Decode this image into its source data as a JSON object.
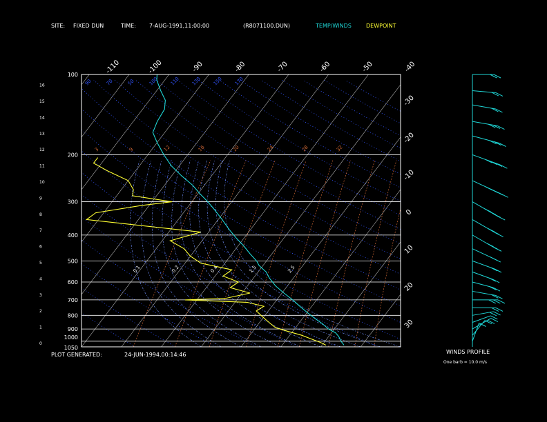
{
  "header": {
    "site_label": "SITE:",
    "site_value": "FIXED DUN",
    "time_label": "TIME:",
    "time_value": "7-AUG-1991,11:00:00",
    "file_id": "(R8071100.DUN)",
    "legend_temp": "TEMP/WINDS",
    "legend_dewpoint": "DEWPOINT"
  },
  "footer": {
    "generated_label": "PLOT GENERATED:",
    "generated_value": "24-JUN-1994,00:14:46"
  },
  "winds_panel": {
    "title": "WINDS PROFILE",
    "note": "One barb = 10.0 m/s"
  },
  "colors": {
    "background": "#000000",
    "frame": "#ffffff",
    "temperature": "#1fd6d6",
    "dewpoint": "#ffff33",
    "isotherm": "#b0b0b0",
    "dry_adiabat": "#3355ff",
    "moist_adiabat": "#7090ff",
    "mixing_ratio": "#cc6633"
  },
  "chart_data": {
    "type": "line",
    "chart_kind": "skew-T log-p diagram",
    "pressure_ticks_hpa": [
      "100",
      "200",
      "300",
      "400",
      "500",
      "600",
      "700",
      "800",
      "900",
      "1000",
      "1050"
    ],
    "height_ticks_km": [
      "0",
      "1",
      "2",
      "3",
      "4",
      "5",
      "6",
      "7",
      "8",
      "9",
      "10",
      "11",
      "12",
      "13",
      "14",
      "15",
      "16"
    ],
    "top_temp_ticks": [
      "-110",
      "-100",
      "-90",
      "-80",
      "-70",
      "-60",
      "-50",
      "-40"
    ],
    "right_temp_ticks": [
      "-30",
      "-20",
      "-10",
      "0",
      "10",
      "20",
      "30"
    ],
    "theta_labels": [
      "2.5",
      "1.5",
      "0.4",
      "0.2",
      "0.1"
    ],
    "mixing_ratio_labels": [
      "3",
      "9",
      "12",
      "16",
      "20",
      "24",
      "28",
      "32"
    ],
    "dry_adiabat_labels": [
      "90",
      "70",
      "50",
      "100",
      "110",
      "130",
      "150",
      "170"
    ],
    "ylim_hpa": [
      1050,
      100
    ],
    "series": [
      {
        "name": "TEMP/WINDS",
        "points": [
          {
            "p": 1035,
            "t": 25.5
          },
          {
            "p": 1000,
            "t": 24
          },
          {
            "p": 960,
            "t": 22.5
          },
          {
            "p": 930,
            "t": 21
          },
          {
            "p": 900,
            "t": 18.5
          },
          {
            "p": 860,
            "t": 16
          },
          {
            "p": 820,
            "t": 13
          },
          {
            "p": 780,
            "t": 10
          },
          {
            "p": 740,
            "t": 7
          },
          {
            "p": 700,
            "t": 4
          },
          {
            "p": 660,
            "t": 0.5
          },
          {
            "p": 620,
            "t": -3
          },
          {
            "p": 580,
            "t": -6
          },
          {
            "p": 550,
            "t": -8
          },
          {
            "p": 520,
            "t": -11
          },
          {
            "p": 500,
            "t": -12.5
          },
          {
            "p": 470,
            "t": -15.5
          },
          {
            "p": 440,
            "t": -18.5
          },
          {
            "p": 410,
            "t": -22
          },
          {
            "p": 380,
            "t": -25.5
          },
          {
            "p": 350,
            "t": -29
          },
          {
            "p": 320,
            "t": -33
          },
          {
            "p": 300,
            "t": -36
          },
          {
            "p": 280,
            "t": -39.5
          },
          {
            "p": 260,
            "t": -43
          },
          {
            "p": 240,
            "t": -47.5
          },
          {
            "p": 220,
            "t": -52
          },
          {
            "p": 200,
            "t": -56
          },
          {
            "p": 180,
            "t": -60
          },
          {
            "p": 165,
            "t": -63
          },
          {
            "p": 150,
            "t": -64
          },
          {
            "p": 135,
            "t": -64.5
          },
          {
            "p": 125,
            "t": -66
          },
          {
            "p": 115,
            "t": -69
          },
          {
            "p": 105,
            "t": -72
          },
          {
            "p": 100,
            "t": -73
          }
        ]
      },
      {
        "name": "DEWPOINT",
        "points": [
          {
            "p": 1035,
            "t": 21
          },
          {
            "p": 1010,
            "t": 19
          },
          {
            "p": 980,
            "t": 16
          },
          {
            "p": 950,
            "t": 13
          },
          {
            "p": 920,
            "t": 9
          },
          {
            "p": 890,
            "t": 5
          },
          {
            "p": 860,
            "t": 3
          },
          {
            "p": 830,
            "t": 1
          },
          {
            "p": 800,
            "t": -1
          },
          {
            "p": 770,
            "t": -3
          },
          {
            "p": 740,
            "t": -2
          },
          {
            "p": 715,
            "t": -7
          },
          {
            "p": 700,
            "t": -23
          },
          {
            "p": 690,
            "t": -13
          },
          {
            "p": 660,
            "t": -8
          },
          {
            "p": 630,
            "t": -14
          },
          {
            "p": 600,
            "t": -13
          },
          {
            "p": 570,
            "t": -18
          },
          {
            "p": 540,
            "t": -17
          },
          {
            "p": 510,
            "t": -26
          },
          {
            "p": 480,
            "t": -30
          },
          {
            "p": 450,
            "t": -33
          },
          {
            "p": 420,
            "t": -38
          },
          {
            "p": 390,
            "t": -32
          },
          {
            "p": 370,
            "t": -47
          },
          {
            "p": 350,
            "t": -63
          },
          {
            "p": 330,
            "t": -62
          },
          {
            "p": 310,
            "t": -52
          },
          {
            "p": 300,
            "t": -45
          },
          {
            "p": 285,
            "t": -56
          },
          {
            "p": 270,
            "t": -57
          },
          {
            "p": 250,
            "t": -60
          },
          {
            "p": 230,
            "t": -67
          },
          {
            "p": 215,
            "t": -72
          },
          {
            "p": 205,
            "t": -72
          }
        ]
      }
    ],
    "wind_profile": [
      {
        "p": 1000,
        "speed": 10,
        "dir": 200
      },
      {
        "p": 950,
        "speed": 10,
        "dir": 220
      },
      {
        "p": 900,
        "speed": 15,
        "dir": 240
      },
      {
        "p": 850,
        "speed": 10,
        "dir": 250
      },
      {
        "p": 800,
        "speed": 15,
        "dir": 260
      },
      {
        "p": 750,
        "speed": 20,
        "dir": 270
      },
      {
        "p": 700,
        "speed": 25,
        "dir": 270
      },
      {
        "p": 650,
        "speed": 20,
        "dir": 280
      },
      {
        "p": 600,
        "speed": 15,
        "dir": 285
      },
      {
        "p": 550,
        "speed": 15,
        "dir": 290
      },
      {
        "p": 500,
        "speed": 20,
        "dir": 290
      },
      {
        "p": 450,
        "speed": 20,
        "dir": 295
      },
      {
        "p": 400,
        "speed": 25,
        "dir": 300
      },
      {
        "p": 350,
        "speed": 30,
        "dir": 300
      },
      {
        "p": 300,
        "speed": 35,
        "dir": 300
      },
      {
        "p": 250,
        "speed": 40,
        "dir": 295
      },
      {
        "p": 200,
        "speed": 35,
        "dir": 290
      },
      {
        "p": 170,
        "speed": 30,
        "dir": 285
      },
      {
        "p": 150,
        "speed": 25,
        "dir": 280
      },
      {
        "p": 130,
        "speed": 20,
        "dir": 280
      },
      {
        "p": 115,
        "speed": 20,
        "dir": 275
      },
      {
        "p": 100,
        "speed": 15,
        "dir": 270
      }
    ]
  }
}
